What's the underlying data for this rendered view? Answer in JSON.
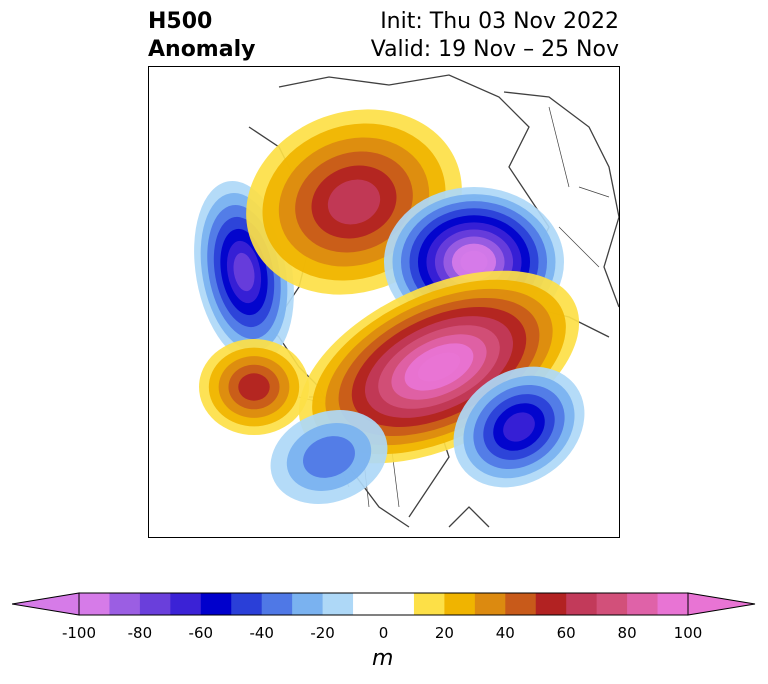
{
  "title": {
    "left_line1": "H500",
    "left_line2": "Anomaly",
    "init": "Init: Thu 03 Nov 2022",
    "valid": "Valid: 19 Nov – 25 Nov"
  },
  "colorbar": {
    "unit": "m",
    "ticks": [
      "-100",
      "-80",
      "-60",
      "-40",
      "-20",
      "0",
      "20",
      "40",
      "60",
      "80",
      "100"
    ],
    "tick_values": [
      -100,
      -80,
      -60,
      -40,
      -20,
      0,
      20,
      40,
      60,
      80,
      100
    ],
    "colors": [
      "#d67be8",
      "#9b5ee3",
      "#6a3fdb",
      "#3b22d6",
      "#0000cc",
      "#2a3fd8",
      "#4f78e6",
      "#7ab2f0",
      "#aed8f7",
      "#ffffff",
      "#ffffff",
      "#fde047",
      "#f0b400",
      "#dc8a10",
      "#c85a1a",
      "#b22222",
      "#c23a5a",
      "#d2507a",
      "#df62a8",
      "#e874d4"
    ],
    "extend_low_color": "#d67be8",
    "extend_high_color": "#e874d4"
  },
  "map": {
    "projection": "north-polar",
    "coastline_color": "#404040",
    "anomaly_centers": [
      {
        "name": "north-pacific-low",
        "value": -70
      },
      {
        "name": "alaska-yukon-high",
        "value": 60
      },
      {
        "name": "siberian-arctic-low",
        "value": -100
      },
      {
        "name": "greenland-high",
        "value": 100
      },
      {
        "name": "central-pacific-high",
        "value": 50
      },
      {
        "name": "north-atlantic-low",
        "value": -60
      },
      {
        "name": "western-us-low",
        "value": -30
      }
    ]
  }
}
